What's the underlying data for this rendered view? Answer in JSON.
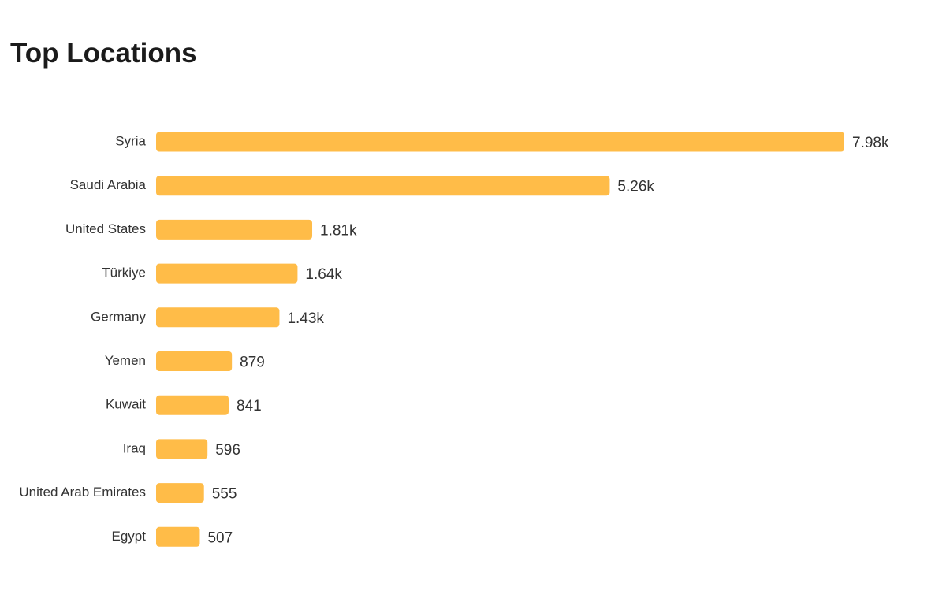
{
  "title": "Top Locations",
  "chart_data": {
    "type": "bar",
    "orientation": "horizontal",
    "title": "Top Locations",
    "categories": [
      "Syria",
      "Saudi Arabia",
      "United States",
      "Türkiye",
      "Germany",
      "Yemen",
      "Kuwait",
      "Iraq",
      "United Arab Emirates",
      "Egypt"
    ],
    "values": [
      7980,
      5260,
      1810,
      1640,
      1430,
      879,
      841,
      596,
      555,
      507
    ],
    "value_labels": [
      "7.98k",
      "5.26k",
      "1.81k",
      "1.64k",
      "1.43k",
      "879",
      "841",
      "596",
      "555",
      "507"
    ],
    "xlabel": "",
    "ylabel": "",
    "grid": false,
    "legend": "none",
    "bar_color": "#FFBC48"
  }
}
